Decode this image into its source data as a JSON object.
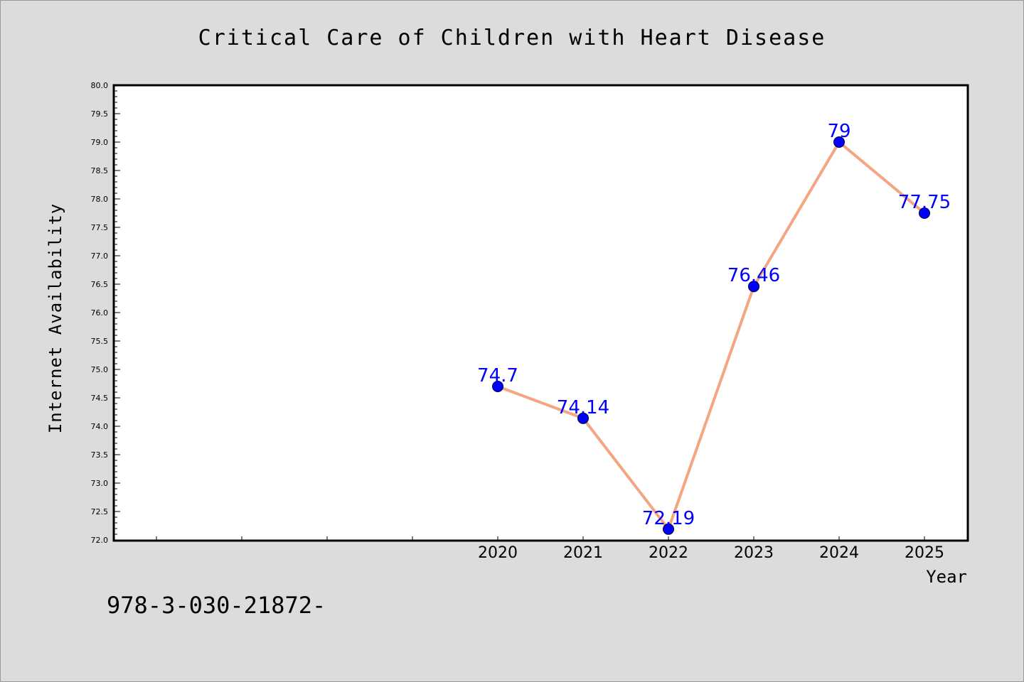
{
  "chart_data": {
    "type": "line",
    "title": "Critical Care of Children with Heart Disease",
    "xlabel": "Year",
    "ylabel": "Internet Availability",
    "x": [
      "2020",
      "2021",
      "2022",
      "2023",
      "2024",
      "2025"
    ],
    "values": [
      74.7,
      74.14,
      72.19,
      76.46,
      79,
      77.75
    ],
    "data_labels": [
      "74.7",
      "74.14",
      "72.19",
      "76.46",
      "79",
      "77.75"
    ],
    "ylim": [
      72.0,
      80.0
    ],
    "y_tick_step": 0.5,
    "y_tick_labels": [
      "72.0",
      "72.5",
      "73.0",
      "73.5",
      "74.0",
      "74.5",
      "75.0",
      "75.5",
      "76.0",
      "76.5",
      "77.0",
      "77.5",
      "78.0",
      "78.5",
      "79.0",
      "79.5",
      "80.0"
    ],
    "grid": false,
    "legend": "none",
    "line_color": "#f4a582",
    "marker_color": "#0000ff",
    "label_color": "#0000ff"
  },
  "footer_text": "978-3-030-21872-"
}
